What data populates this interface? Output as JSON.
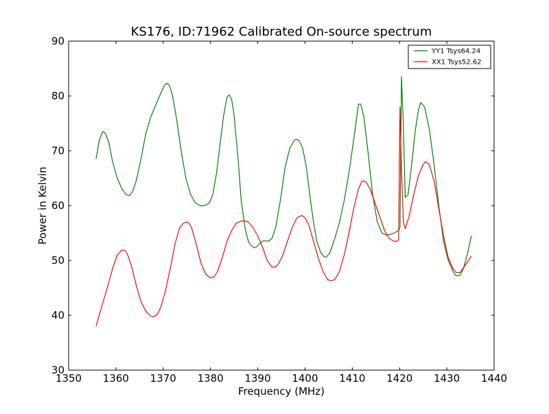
{
  "chart_data": {
    "type": "line",
    "title": "KS176, ID:71962 Calibrated On-source spectrum",
    "xlabel": "Frequency (MHz)",
    "ylabel": "Power in Kelvin",
    "xlim": [
      1350,
      1440
    ],
    "ylim": [
      30,
      90
    ],
    "xticks": [
      "1350",
      "1360",
      "1370",
      "1380",
      "1390",
      "1400",
      "1410",
      "1420",
      "1430",
      "1440"
    ],
    "yticks": [
      "30",
      "40",
      "50",
      "60",
      "70",
      "80",
      "90"
    ],
    "grid": false,
    "legend_position": "top-right",
    "series": [
      {
        "name": "YY1 Tsys64.24",
        "color": "#008000",
        "x": [
          1355.8,
          1356.5,
          1357.2,
          1357.8,
          1358.5,
          1359.3,
          1360.3,
          1361.3,
          1362.2,
          1362.8,
          1363.5,
          1364.3,
          1365.3,
          1366.3,
          1367.3,
          1368.5,
          1369.5,
          1370.3,
          1370.8,
          1371.3,
          1372.0,
          1372.8,
          1373.8,
          1374.8,
          1375.8,
          1376.8,
          1377.8,
          1378.8,
          1379.8,
          1380.5,
          1381.3,
          1382.0,
          1382.8,
          1383.5,
          1384.0,
          1384.5,
          1385.0,
          1385.8,
          1386.5,
          1387.3,
          1388.0,
          1388.5,
          1389.2,
          1389.8,
          1390.5,
          1391.3,
          1392.3,
          1393.0,
          1393.8,
          1394.8,
          1395.8,
          1396.8,
          1397.8,
          1398.3,
          1398.8,
          1399.5,
          1400.3,
          1401.0,
          1401.8,
          1402.5,
          1403.3,
          1404.0,
          1404.5,
          1405.3,
          1406.3,
          1407.3,
          1408.3,
          1409.3,
          1410.3,
          1411.0,
          1411.3,
          1411.8,
          1412.5,
          1413.3,
          1414.3,
          1415.3,
          1416.3,
          1417.3,
          1418.3,
          1419.3,
          1419.8,
          1420.1,
          1420.4,
          1420.8,
          1421.2,
          1421.8,
          1422.5,
          1423.3,
          1424.0,
          1424.5,
          1425.3,
          1426.3,
          1427.3,
          1428.3,
          1429.3,
          1430.3,
          1431.3,
          1432.0,
          1432.8,
          1433.5,
          1434.3,
          1435.2
        ],
        "y": [
          68.5,
          72.0,
          73.5,
          73.2,
          71.5,
          68.0,
          65.0,
          63.0,
          62.0,
          61.8,
          62.5,
          64.5,
          68.5,
          73.0,
          76.0,
          78.5,
          80.5,
          82.0,
          82.3,
          82.0,
          80.0,
          76.0,
          70.0,
          65.0,
          62.0,
          60.5,
          60.0,
          60.0,
          60.5,
          62.0,
          66.0,
          71.0,
          76.5,
          79.8,
          80.2,
          79.3,
          76.5,
          69.0,
          61.0,
          56.0,
          53.5,
          52.8,
          52.3,
          52.5,
          53.2,
          53.6,
          53.5,
          54.0,
          56.0,
          61.0,
          67.0,
          70.5,
          72.0,
          72.1,
          71.8,
          70.5,
          67.0,
          62.0,
          57.0,
          53.5,
          51.5,
          50.7,
          50.6,
          51.5,
          54.0,
          57.0,
          61.0,
          66.0,
          72.0,
          76.5,
          78.5,
          78.5,
          76.0,
          70.0,
          62.0,
          57.0,
          55.0,
          54.6,
          54.8,
          55.2,
          55.5,
          56.0,
          83.5,
          75.0,
          61.5,
          62.0,
          67.0,
          73.5,
          77.5,
          78.8,
          78.0,
          74.0,
          67.5,
          60.0,
          53.5,
          50.0,
          48.0,
          47.2,
          47.3,
          48.5,
          51.0,
          54.5
        ]
      },
      {
        "name": "XX1 Tsys52.62",
        "color": "#ff0000",
        "x": [
          1355.8,
          1356.8,
          1358.0,
          1359.3,
          1360.3,
          1361.3,
          1362.0,
          1362.5,
          1363.3,
          1364.3,
          1365.3,
          1366.3,
          1367.3,
          1368.0,
          1368.8,
          1369.5,
          1370.5,
          1371.5,
          1372.5,
          1373.5,
          1374.3,
          1375.0,
          1375.5,
          1376.0,
          1377.0,
          1378.0,
          1379.0,
          1380.0,
          1380.8,
          1381.5,
          1382.5,
          1383.5,
          1384.5,
          1385.5,
          1386.5,
          1387.3,
          1388.0,
          1389.0,
          1390.0,
          1391.0,
          1392.0,
          1393.0,
          1393.8,
          1394.5,
          1395.3,
          1396.3,
          1397.3,
          1398.3,
          1399.3,
          1400.0,
          1400.8,
          1401.8,
          1402.8,
          1403.8,
          1404.8,
          1405.5,
          1406.3,
          1407.3,
          1408.3,
          1409.3,
          1410.3,
          1411.3,
          1412.0,
          1412.5,
          1413.0,
          1413.8,
          1414.8,
          1415.8,
          1416.8,
          1417.8,
          1418.8,
          1419.5,
          1419.8,
          1420.1,
          1420.4,
          1420.8,
          1421.2,
          1422.0,
          1423.0,
          1424.0,
          1425.0,
          1425.5,
          1426.3,
          1427.3,
          1428.3,
          1429.3,
          1430.3,
          1431.3,
          1432.0,
          1432.8,
          1433.8,
          1435.2
        ],
        "y": [
          38.0,
          41.0,
          44.5,
          48.5,
          51.0,
          51.9,
          51.8,
          51.0,
          49.0,
          45.5,
          42.5,
          40.8,
          39.9,
          39.7,
          40.2,
          41.5,
          44.5,
          48.5,
          53.0,
          56.0,
          56.8,
          57.0,
          56.8,
          56.0,
          53.0,
          49.5,
          47.5,
          46.8,
          47.0,
          48.0,
          50.5,
          53.5,
          55.5,
          56.8,
          57.2,
          57.2,
          57.0,
          56.0,
          54.5,
          52.5,
          50.0,
          48.8,
          48.8,
          49.5,
          51.0,
          53.5,
          56.0,
          57.8,
          58.2,
          57.8,
          56.5,
          53.5,
          50.5,
          48.0,
          46.5,
          46.3,
          46.5,
          48.0,
          51.0,
          55.0,
          59.5,
          63.0,
          64.4,
          64.5,
          64.2,
          63.0,
          60.5,
          58.0,
          55.5,
          54.0,
          53.5,
          53.5,
          53.8,
          78.0,
          67.0,
          57.0,
          55.8,
          58.0,
          62.0,
          65.5,
          67.5,
          68.0,
          67.5,
          64.5,
          59.5,
          54.5,
          50.5,
          48.5,
          47.8,
          47.8,
          49.0,
          50.8
        ]
      }
    ]
  }
}
